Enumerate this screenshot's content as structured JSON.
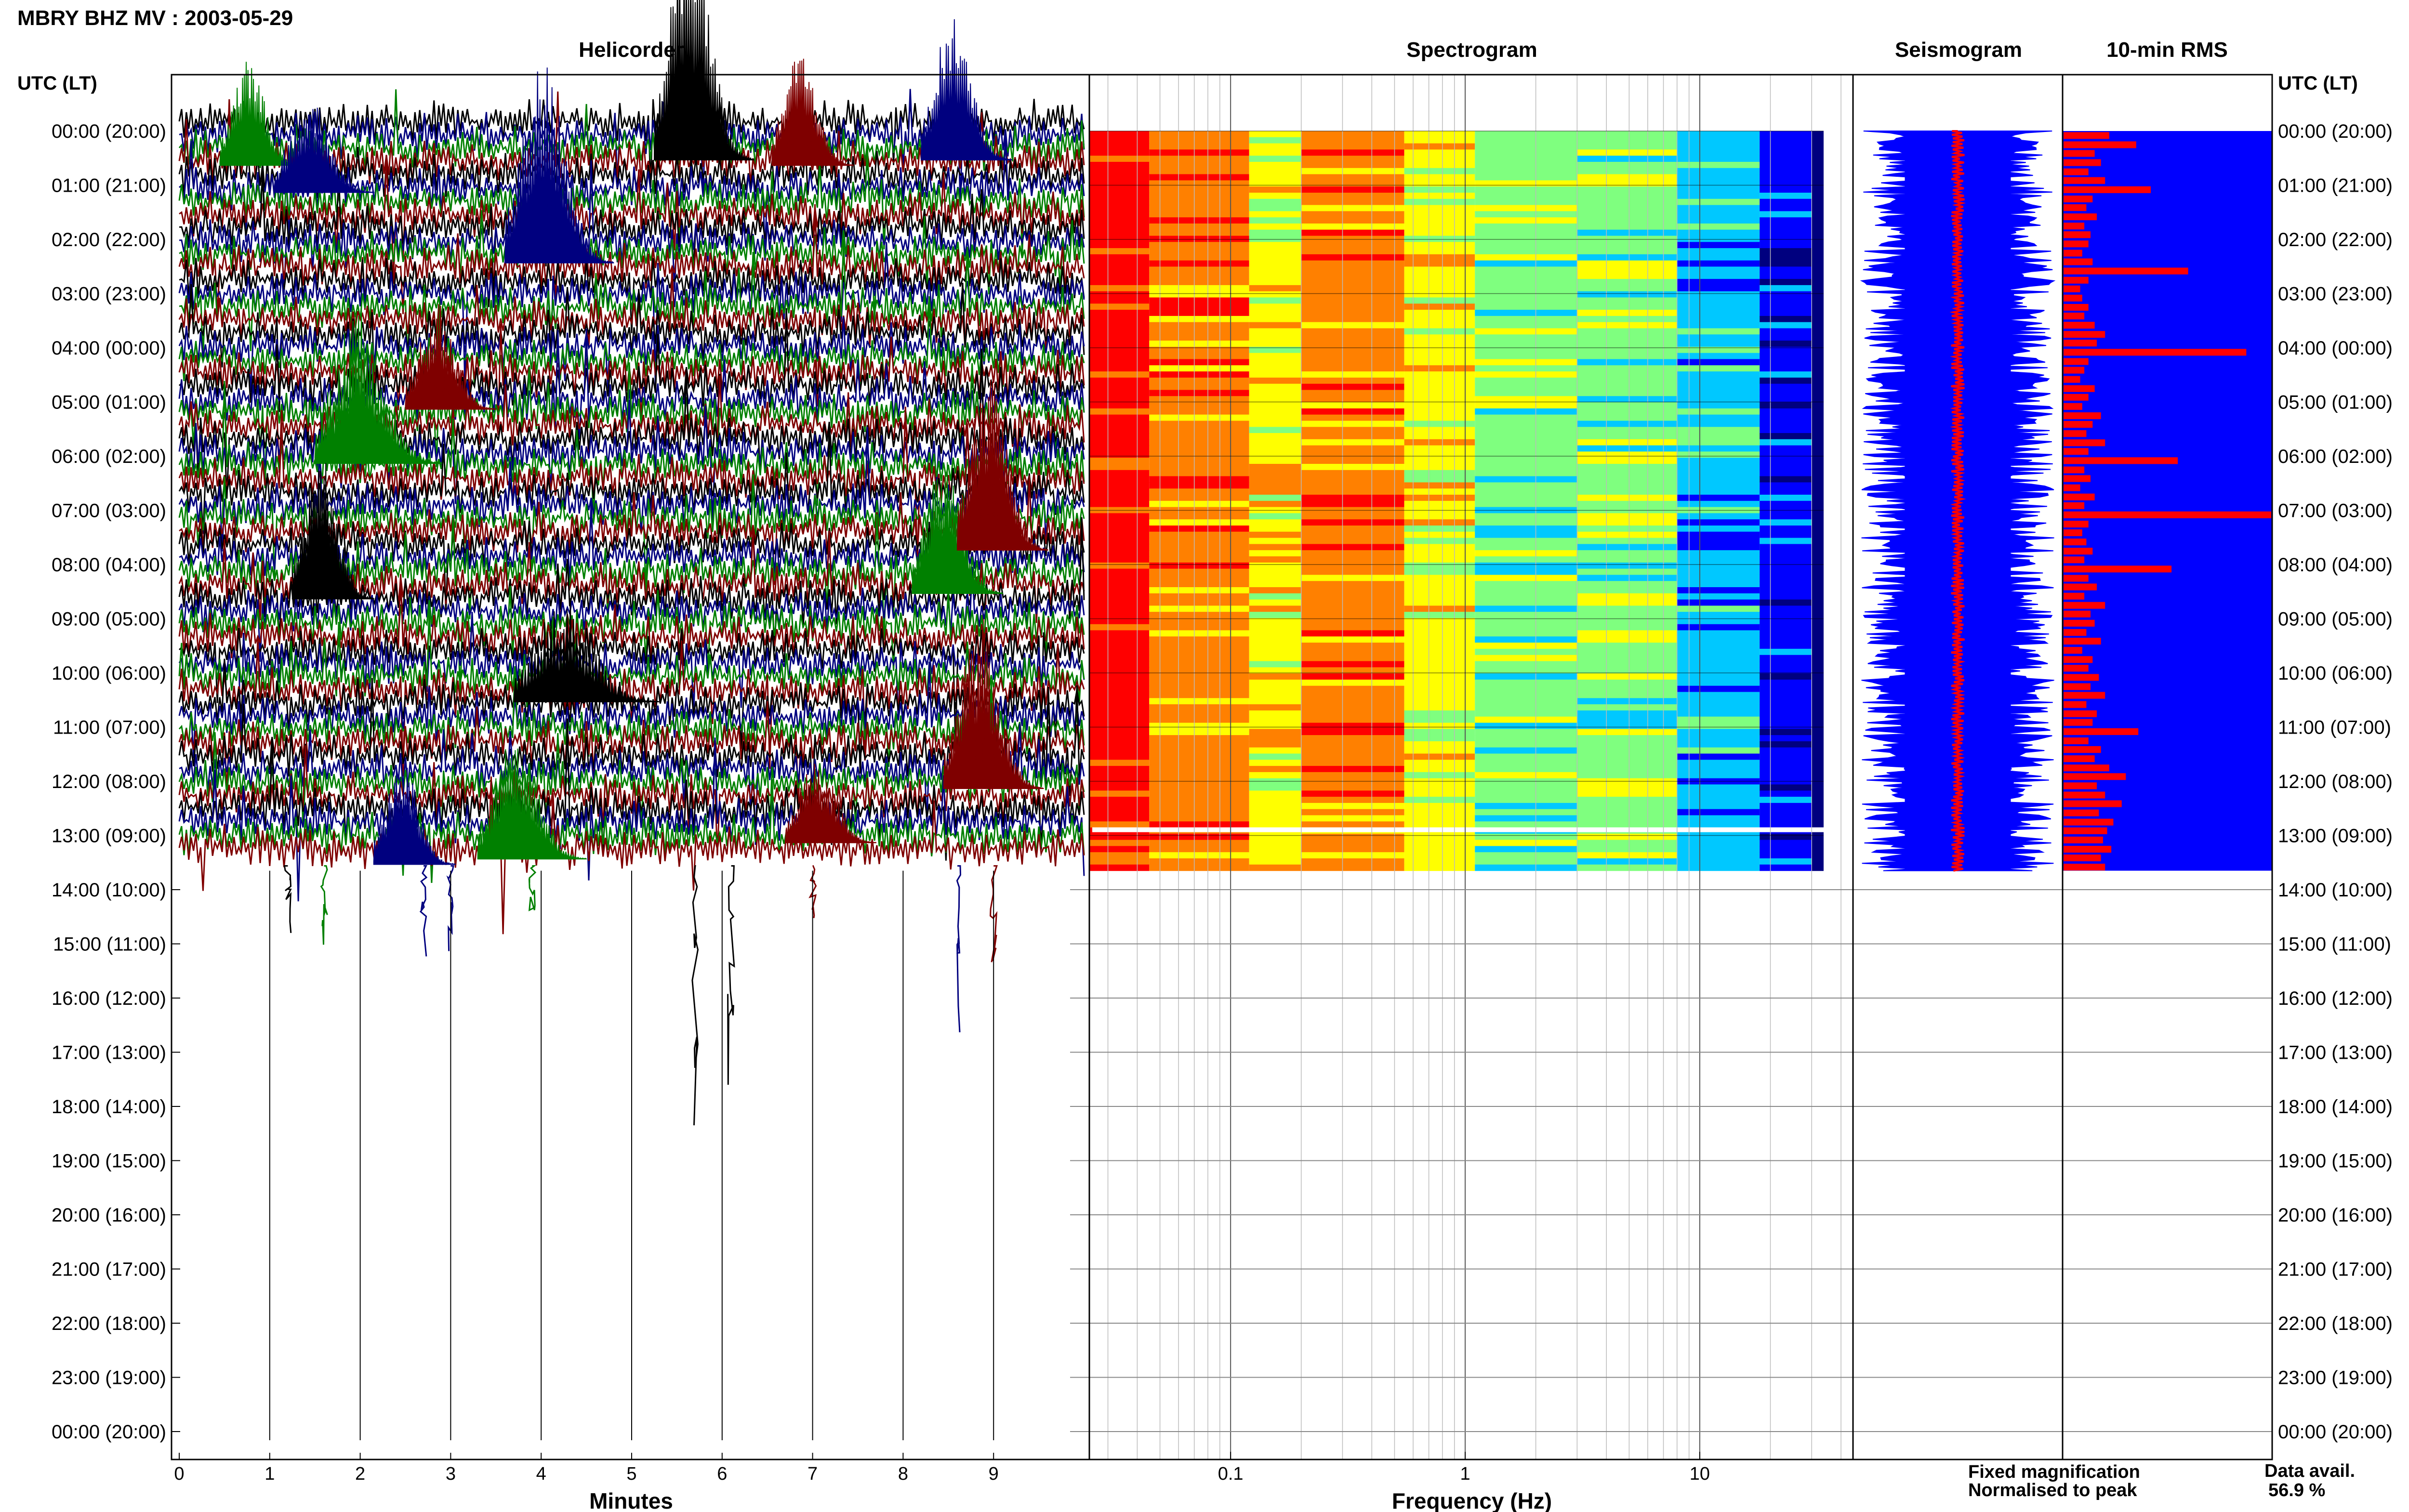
{
  "title": "MBRY BHZ MV : 2003-05-29",
  "panels": {
    "helicorder": "Helicorder",
    "spectrogram": "Spectrogram",
    "seismogram": "Seismogram",
    "rms": "10-min RMS"
  },
  "axis": {
    "time_header": "UTC (LT)",
    "minutes_label": "Minutes",
    "frequency_label": "Frequency (Hz)"
  },
  "legend": {
    "fixed": "Fixed magnification",
    "normalised": "Normalised to peak",
    "fixed_color": "#0000ff",
    "normalised_color": "#ff0000"
  },
  "availability": {
    "label": "Data avail.",
    "value": "56.9 %",
    "fraction": 0.569
  },
  "chart_data": {
    "type": "line",
    "time_ticks": [
      "00:00 (20:00)",
      "01:00 (21:00)",
      "02:00 (22:00)",
      "03:00 (23:00)",
      "04:00 (00:00)",
      "05:00 (01:00)",
      "06:00 (02:00)",
      "07:00 (03:00)",
      "08:00 (04:00)",
      "09:00 (05:00)",
      "10:00 (06:00)",
      "11:00 (07:00)",
      "12:00 (08:00)",
      "13:00 (09:00)",
      "14:00 (10:00)",
      "15:00 (11:00)",
      "16:00 (12:00)",
      "17:00 (13:00)",
      "18:00 (14:00)",
      "19:00 (15:00)",
      "20:00 (16:00)",
      "21:00 (17:00)",
      "22:00 (18:00)",
      "23:00 (19:00)",
      "00:00 (20:00)"
    ],
    "minute_ticks": [
      "0",
      "1",
      "2",
      "3",
      "4",
      "5",
      "6",
      "7",
      "8",
      "9"
    ],
    "freq_ticks": [
      {
        "label": "0.1",
        "value": 0.1
      },
      {
        "label": "1",
        "value": 1
      },
      {
        "label": "10",
        "value": 10
      }
    ],
    "freq_range": [
      0.025,
      45
    ],
    "minutes_range": [
      0,
      10
    ],
    "hours_range": [
      0,
      24
    ],
    "data_end_hour": 13.65,
    "helicorder_colors": [
      "#000000",
      "#00007f",
      "#008000",
      "#7f0000"
    ],
    "spectrogram_colorscale": [
      "#00007f",
      "#0000ff",
      "#00c8ff",
      "#7fff7f",
      "#ffff00",
      "#ff8000",
      "#ff0000"
    ],
    "rms_series": [
      {
        "hour": 0.0,
        "value": 0.22
      },
      {
        "hour": 0.17,
        "value": 0.35
      },
      {
        "hour": 0.33,
        "value": 0.15
      },
      {
        "hour": 0.5,
        "value": 0.18
      },
      {
        "hour": 0.67,
        "value": 0.12
      },
      {
        "hour": 0.83,
        "value": 0.2
      },
      {
        "hour": 1.0,
        "value": 0.42
      },
      {
        "hour": 1.17,
        "value": 0.14
      },
      {
        "hour": 1.33,
        "value": 0.11
      },
      {
        "hour": 1.5,
        "value": 0.16
      },
      {
        "hour": 1.67,
        "value": 0.1
      },
      {
        "hour": 1.83,
        "value": 0.13
      },
      {
        "hour": 2.0,
        "value": 0.12
      },
      {
        "hour": 2.17,
        "value": 0.09
      },
      {
        "hour": 2.33,
        "value": 0.14
      },
      {
        "hour": 2.5,
        "value": 0.6
      },
      {
        "hour": 2.67,
        "value": 0.12
      },
      {
        "hour": 2.83,
        "value": 0.08
      },
      {
        "hour": 3.0,
        "value": 0.09
      },
      {
        "hour": 3.17,
        "value": 0.12
      },
      {
        "hour": 3.33,
        "value": 0.1
      },
      {
        "hour": 3.5,
        "value": 0.15
      },
      {
        "hour": 3.67,
        "value": 0.2
      },
      {
        "hour": 3.83,
        "value": 0.16
      },
      {
        "hour": 4.0,
        "value": 0.88
      },
      {
        "hour": 4.17,
        "value": 0.12
      },
      {
        "hour": 4.33,
        "value": 0.1
      },
      {
        "hour": 4.5,
        "value": 0.08
      },
      {
        "hour": 4.67,
        "value": 0.15
      },
      {
        "hour": 4.83,
        "value": 0.12
      },
      {
        "hour": 5.0,
        "value": 0.09
      },
      {
        "hour": 5.17,
        "value": 0.18
      },
      {
        "hour": 5.33,
        "value": 0.14
      },
      {
        "hour": 5.5,
        "value": 0.11
      },
      {
        "hour": 5.67,
        "value": 0.2
      },
      {
        "hour": 5.83,
        "value": 0.12
      },
      {
        "hour": 6.0,
        "value": 0.55
      },
      {
        "hour": 6.17,
        "value": 0.1
      },
      {
        "hour": 6.33,
        "value": 0.13
      },
      {
        "hour": 6.5,
        "value": 0.08
      },
      {
        "hour": 6.67,
        "value": 0.15
      },
      {
        "hour": 6.83,
        "value": 0.1
      },
      {
        "hour": 7.0,
        "value": 1.0
      },
      {
        "hour": 7.17,
        "value": 0.12
      },
      {
        "hour": 7.33,
        "value": 0.09
      },
      {
        "hour": 7.5,
        "value": 0.11
      },
      {
        "hour": 7.67,
        "value": 0.14
      },
      {
        "hour": 7.83,
        "value": 0.1
      },
      {
        "hour": 8.0,
        "value": 0.52
      },
      {
        "hour": 8.17,
        "value": 0.12
      },
      {
        "hour": 8.33,
        "value": 0.16
      },
      {
        "hour": 8.5,
        "value": 0.1
      },
      {
        "hour": 8.67,
        "value": 0.2
      },
      {
        "hour": 8.83,
        "value": 0.13
      },
      {
        "hour": 9.0,
        "value": 0.15
      },
      {
        "hour": 9.17,
        "value": 0.11
      },
      {
        "hour": 9.33,
        "value": 0.18
      },
      {
        "hour": 9.5,
        "value": 0.09
      },
      {
        "hour": 9.67,
        "value": 0.14
      },
      {
        "hour": 9.83,
        "value": 0.12
      },
      {
        "hour": 10.0,
        "value": 0.17
      },
      {
        "hour": 10.17,
        "value": 0.13
      },
      {
        "hour": 10.33,
        "value": 0.2
      },
      {
        "hour": 10.5,
        "value": 0.11
      },
      {
        "hour": 10.67,
        "value": 0.16
      },
      {
        "hour": 10.83,
        "value": 0.14
      },
      {
        "hour": 11.0,
        "value": 0.36
      },
      {
        "hour": 11.17,
        "value": 0.12
      },
      {
        "hour": 11.33,
        "value": 0.18
      },
      {
        "hour": 11.5,
        "value": 0.15
      },
      {
        "hour": 11.67,
        "value": 0.22
      },
      {
        "hour": 11.83,
        "value": 0.3
      },
      {
        "hour": 12.0,
        "value": 0.16
      },
      {
        "hour": 12.17,
        "value": 0.2
      },
      {
        "hour": 12.33,
        "value": 0.28
      },
      {
        "hour": 12.5,
        "value": 0.17
      },
      {
        "hour": 12.67,
        "value": 0.24
      },
      {
        "hour": 12.83,
        "value": 0.21
      },
      {
        "hour": 13.0,
        "value": 0.19
      },
      {
        "hour": 13.17,
        "value": 0.23
      },
      {
        "hour": 13.33,
        "value": 0.18
      },
      {
        "hour": 13.5,
        "value": 0.2
      }
    ]
  }
}
